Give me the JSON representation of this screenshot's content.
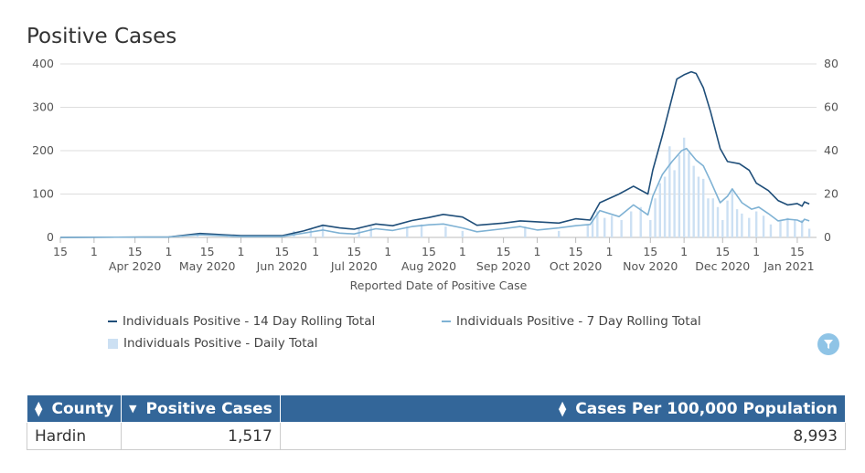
{
  "title": "Positive Cases",
  "chart_data": {
    "type": "line",
    "x_axis": {
      "title": "Reported Date of Positive Case",
      "start": "2020-03-01",
      "end": "2021-01-09",
      "minor_tick_labels": [
        "15",
        "1",
        "15",
        "1",
        "15",
        "1",
        "15",
        "1",
        "15",
        "1",
        "15",
        "1",
        "15",
        "1",
        "15",
        "1",
        "15",
        "1",
        "15",
        "1",
        "15",
        "1"
      ],
      "month_labels": [
        "Apr 2020",
        "May 2020",
        "Jun 2020",
        "Jul 2020",
        "Aug 2020",
        "Sep 2020",
        "Oct 2020",
        "Nov 2020",
        "Dec 2020",
        "Jan 2021"
      ]
    },
    "y_axis_left": {
      "range": [
        0,
        400
      ],
      "ticks": [
        "0",
        "100",
        "200",
        "300",
        "400"
      ]
    },
    "y_axis_right": {
      "range": [
        0,
        80
      ],
      "ticks": [
        "0",
        "20",
        "40",
        "60",
        "80"
      ]
    },
    "grid": true,
    "legend_position": "bottom",
    "series": [
      {
        "name": "Individuals Positive - 14 Day Rolling Total",
        "type": "line",
        "axis": "left",
        "color": "#1f4e79",
        "points": [
          [
            "2020-03-01",
            0
          ],
          [
            "2020-04-15",
            1
          ],
          [
            "2020-04-28",
            9
          ],
          [
            "2020-05-15",
            4
          ],
          [
            "2020-06-01",
            4
          ],
          [
            "2020-06-10",
            15
          ],
          [
            "2020-06-18",
            28
          ],
          [
            "2020-06-25",
            22
          ],
          [
            "2020-07-01",
            19
          ],
          [
            "2020-07-10",
            31
          ],
          [
            "2020-07-17",
            27
          ],
          [
            "2020-07-25",
            39
          ],
          [
            "2020-08-01",
            46
          ],
          [
            "2020-08-07",
            53
          ],
          [
            "2020-08-15",
            47
          ],
          [
            "2020-08-21",
            28
          ],
          [
            "2020-09-01",
            33
          ],
          [
            "2020-09-08",
            38
          ],
          [
            "2020-09-15",
            36
          ],
          [
            "2020-09-24",
            33
          ],
          [
            "2020-10-01",
            43
          ],
          [
            "2020-10-07",
            40
          ],
          [
            "2020-10-11",
            80
          ],
          [
            "2020-10-19",
            100
          ],
          [
            "2020-10-25",
            118
          ],
          [
            "2020-10-31",
            100
          ],
          [
            "2020-11-02",
            155
          ],
          [
            "2020-11-06",
            235
          ],
          [
            "2020-11-09",
            300
          ],
          [
            "2020-11-12",
            365
          ],
          [
            "2020-11-15",
            375
          ],
          [
            "2020-11-18",
            382
          ],
          [
            "2020-11-20",
            378
          ],
          [
            "2020-11-23",
            345
          ],
          [
            "2020-11-26",
            290
          ],
          [
            "2020-11-30",
            205
          ],
          [
            "2020-12-03",
            175
          ],
          [
            "2020-12-08",
            170
          ],
          [
            "2020-12-12",
            155
          ],
          [
            "2020-12-15",
            125
          ],
          [
            "2020-12-20",
            108
          ],
          [
            "2020-12-24",
            85
          ],
          [
            "2020-12-28",
            75
          ],
          [
            "2021-01-01",
            78
          ],
          [
            "2021-01-03",
            72
          ],
          [
            "2021-01-04",
            82
          ],
          [
            "2021-01-06",
            77
          ]
        ]
      },
      {
        "name": "Individuals Positive - 7 Day Rolling Total",
        "type": "line",
        "axis": "left",
        "color": "#7fb2d4",
        "points": [
          [
            "2020-03-01",
            0
          ],
          [
            "2020-04-15",
            1
          ],
          [
            "2020-04-28",
            6
          ],
          [
            "2020-05-15",
            2
          ],
          [
            "2020-06-01",
            2
          ],
          [
            "2020-06-10",
            10
          ],
          [
            "2020-06-18",
            17
          ],
          [
            "2020-06-25",
            10
          ],
          [
            "2020-07-01",
            8
          ],
          [
            "2020-07-10",
            20
          ],
          [
            "2020-07-17",
            16
          ],
          [
            "2020-07-25",
            25
          ],
          [
            "2020-08-01",
            29
          ],
          [
            "2020-08-07",
            31
          ],
          [
            "2020-08-15",
            22
          ],
          [
            "2020-08-21",
            13
          ],
          [
            "2020-09-01",
            20
          ],
          [
            "2020-09-08",
            25
          ],
          [
            "2020-09-15",
            17
          ],
          [
            "2020-09-24",
            22
          ],
          [
            "2020-10-01",
            27
          ],
          [
            "2020-10-07",
            30
          ],
          [
            "2020-10-11",
            62
          ],
          [
            "2020-10-19",
            48
          ],
          [
            "2020-10-25",
            75
          ],
          [
            "2020-10-31",
            52
          ],
          [
            "2020-11-02",
            95
          ],
          [
            "2020-11-06",
            145
          ],
          [
            "2020-11-10",
            175
          ],
          [
            "2020-11-14",
            200
          ],
          [
            "2020-11-16",
            205
          ],
          [
            "2020-11-20",
            178
          ],
          [
            "2020-11-23",
            165
          ],
          [
            "2020-11-26",
            130
          ],
          [
            "2020-11-30",
            80
          ],
          [
            "2020-12-03",
            95
          ],
          [
            "2020-12-05",
            112
          ],
          [
            "2020-12-09",
            80
          ],
          [
            "2020-12-13",
            65
          ],
          [
            "2020-12-16",
            70
          ],
          [
            "2020-12-20",
            55
          ],
          [
            "2020-12-24",
            38
          ],
          [
            "2020-12-28",
            42
          ],
          [
            "2021-01-01",
            40
          ],
          [
            "2021-01-03",
            35
          ],
          [
            "2021-01-04",
            42
          ],
          [
            "2021-01-06",
            38
          ]
        ]
      },
      {
        "name": "Individuals Positive - Daily Total",
        "type": "bar",
        "axis": "right",
        "color": "#cce0f3",
        "points": [
          [
            "2020-04-20",
            1
          ],
          [
            "2020-04-27",
            2
          ],
          [
            "2020-05-10",
            1
          ],
          [
            "2020-06-06",
            3
          ],
          [
            "2020-06-13",
            4
          ],
          [
            "2020-06-18",
            6
          ],
          [
            "2020-07-03",
            4
          ],
          [
            "2020-07-08",
            5
          ],
          [
            "2020-07-23",
            5
          ],
          [
            "2020-07-29",
            6
          ],
          [
            "2020-08-08",
            5
          ],
          [
            "2020-08-15",
            3
          ],
          [
            "2020-09-10",
            5
          ],
          [
            "2020-09-24",
            3
          ],
          [
            "2020-10-06",
            6
          ],
          [
            "2020-10-08",
            10
          ],
          [
            "2020-10-10",
            12
          ],
          [
            "2020-10-13",
            9
          ],
          [
            "2020-10-16",
            10
          ],
          [
            "2020-10-20",
            8
          ],
          [
            "2020-10-24",
            12
          ],
          [
            "2020-10-28",
            14
          ],
          [
            "2020-11-01",
            8
          ],
          [
            "2020-11-03",
            18
          ],
          [
            "2020-11-05",
            25
          ],
          [
            "2020-11-07",
            28
          ],
          [
            "2020-11-09",
            42
          ],
          [
            "2020-11-11",
            31
          ],
          [
            "2020-11-13",
            38
          ],
          [
            "2020-11-15",
            46
          ],
          [
            "2020-11-17",
            39
          ],
          [
            "2020-11-19",
            33
          ],
          [
            "2020-11-21",
            28
          ],
          [
            "2020-11-23",
            27
          ],
          [
            "2020-11-25",
            18
          ],
          [
            "2020-11-27",
            18
          ],
          [
            "2020-11-29",
            14
          ],
          [
            "2020-12-01",
            8
          ],
          [
            "2020-12-03",
            17
          ],
          [
            "2020-12-05",
            22
          ],
          [
            "2020-12-07",
            13
          ],
          [
            "2020-12-09",
            11
          ],
          [
            "2020-12-12",
            9
          ],
          [
            "2020-12-15",
            12
          ],
          [
            "2020-12-18",
            10
          ],
          [
            "2020-12-21",
            6
          ],
          [
            "2020-12-25",
            8
          ],
          [
            "2020-12-28",
            9
          ],
          [
            "2020-12-31",
            8
          ],
          [
            "2021-01-03",
            8
          ],
          [
            "2021-01-06",
            4
          ]
        ]
      }
    ]
  },
  "legend": [
    {
      "label": "Individuals Positive - 14 Day Rolling Total",
      "color": "#1f4e79",
      "shape": "line"
    },
    {
      "label": "Individuals Positive - 7 Day Rolling Total",
      "color": "#7fb2d4",
      "shape": "line"
    },
    {
      "label": "Individuals Positive - Daily Total",
      "color": "#cce0f3",
      "shape": "box"
    }
  ],
  "filter_icon": "filter-icon",
  "table": {
    "header_color": "#336699",
    "columns": [
      "County",
      "Positive Cases",
      "Cases Per 100,000 Population"
    ],
    "rows": [
      [
        "Hardin",
        "1,517",
        "8,993"
      ]
    ]
  }
}
